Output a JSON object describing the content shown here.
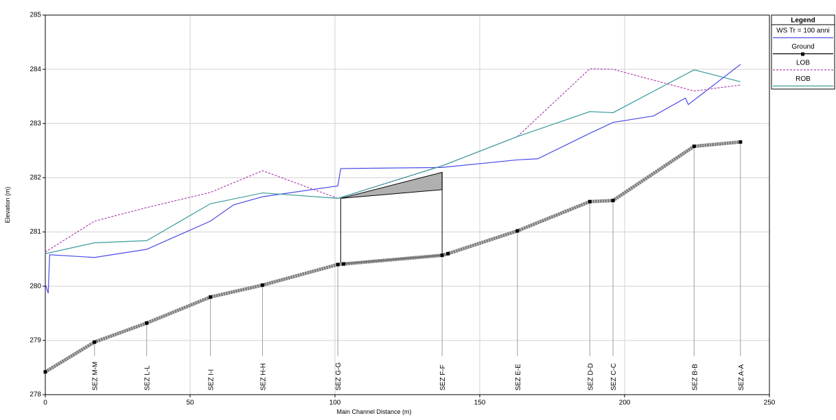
{
  "chart_data": {
    "type": "line",
    "x_label": "Main Channel Distance (m)",
    "y_label": "Elevation (m)",
    "xlim": [
      0,
      250
    ],
    "xticks": [
      0,
      50,
      100,
      150,
      200,
      250
    ],
    "ylim": [
      278,
      285
    ],
    "yticks": [
      278,
      279,
      280,
      281,
      282,
      283,
      284,
      285
    ],
    "grid": true,
    "legend_title": "Legend",
    "legend_position": "right",
    "series": [
      {
        "name": "WS  Tr = 100 anni",
        "color": "#4a4ae8",
        "style": "solid",
        "x": [
          0,
          1,
          1.5,
          17,
          35,
          57,
          65,
          75,
          101,
          102,
          137,
          163,
          170,
          188,
          196,
          210,
          221,
          222,
          240
        ],
        "values": [
          280.04,
          279.87,
          280.58,
          280.53,
          280.68,
          281.2,
          281.5,
          281.65,
          281.85,
          282.17,
          282.19,
          282.33,
          282.35,
          282.82,
          283.02,
          283.14,
          283.47,
          283.35,
          284.09
        ]
      },
      {
        "name": "Ground",
        "color": "#808080",
        "style": "ground",
        "x": [
          0,
          17,
          35,
          57,
          75,
          101,
          103,
          137,
          139,
          163,
          188,
          196,
          224,
          240
        ],
        "values": [
          278.42,
          278.97,
          279.32,
          279.8,
          280.02,
          280.4,
          280.41,
          280.57,
          280.6,
          281.02,
          281.56,
          281.58,
          282.58,
          282.66
        ]
      },
      {
        "name": "LOB",
        "color": "#b040b0",
        "style": "dashed",
        "x": [
          0,
          17,
          35,
          57,
          75,
          101,
          137,
          163,
          188,
          196,
          224,
          240
        ],
        "values": [
          280.63,
          281.2,
          281.45,
          281.73,
          282.13,
          281.62,
          282.22,
          282.76,
          284.01,
          284.0,
          283.6,
          283.71
        ]
      },
      {
        "name": "ROB",
        "color": "#3a9a9a",
        "style": "solid",
        "x": [
          0,
          17,
          35,
          57,
          75,
          101,
          137,
          163,
          188,
          196,
          224,
          240
        ],
        "values": [
          280.6,
          280.8,
          280.84,
          281.52,
          281.72,
          281.62,
          282.22,
          282.76,
          283.22,
          283.2,
          283.99,
          283.77
        ]
      }
    ],
    "sections": [
      {
        "name": "SEZ M-M",
        "x": 17,
        "ground": 278.97
      },
      {
        "name": "SEZ L-L",
        "x": 35,
        "ground": 279.32
      },
      {
        "name": "SEZ I-I",
        "x": 57,
        "ground": 279.8
      },
      {
        "name": "SEZ H-H",
        "x": 75,
        "ground": 280.02
      },
      {
        "name": "SEZ G-G",
        "x": 101,
        "ground": 280.4
      },
      {
        "name": "SEZ F-F",
        "x": 137,
        "ground": 280.57
      },
      {
        "name": "SEZ E-E",
        "x": 163,
        "ground": 281.02
      },
      {
        "name": "SEZ D-D",
        "x": 188,
        "ground": 281.56
      },
      {
        "name": "SEZ C-C",
        "x": 196,
        "ground": 281.58
      },
      {
        "name": "SEZ B-B",
        "x": 224,
        "ground": 282.58
      },
      {
        "name": "SEZ A-A",
        "x": 240,
        "ground": 282.66
      }
    ],
    "culvert": {
      "x": [
        102,
        137
      ],
      "top": [
        281.62,
        282.1
      ],
      "low_chord": [
        281.62,
        281.78
      ],
      "bottom": [
        280.41,
        280.57
      ]
    }
  }
}
